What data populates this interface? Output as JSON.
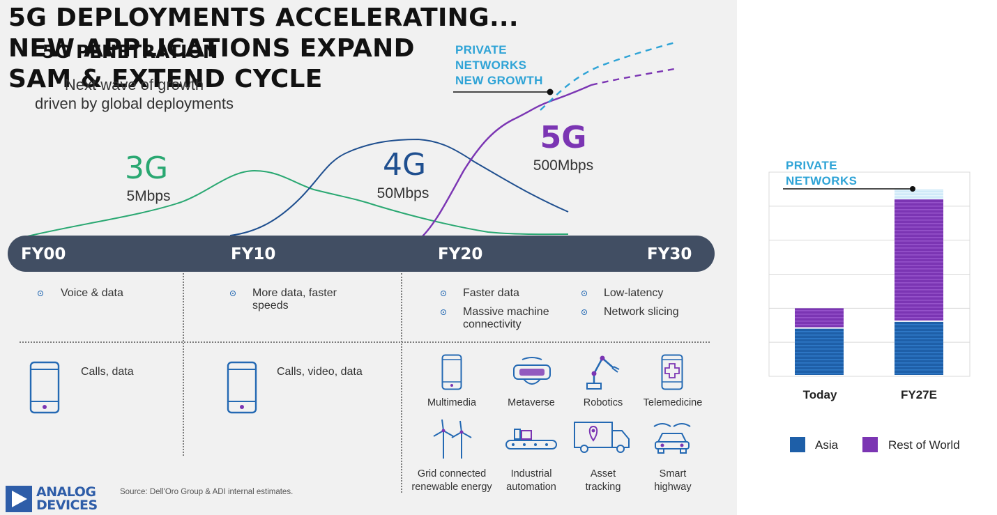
{
  "headline": {
    "line1": "5G DEPLOYMENTS ACCELERATING...",
    "line2": "NEW APPLICATIONS EXPAND",
    "line3": "SAM & EXTEND CYCLE"
  },
  "callout_private": {
    "line1": "PRIVATE",
    "line2": "NETWORKS",
    "line3": "NEW GROWTH"
  },
  "generations": [
    {
      "name": "3G",
      "speed": "5Mbps",
      "color": "#2aa872"
    },
    {
      "name": "4G",
      "speed": "50Mbps",
      "color": "#1f4f8f"
    },
    {
      "name": "5G",
      "speed": "500Mbps",
      "color": "#7b35b3"
    }
  ],
  "timeline": {
    "labels": [
      "FY00",
      "FY10",
      "FY20",
      "FY30"
    ],
    "color": "#414e63"
  },
  "features": {
    "fy00": [
      "Voice & data"
    ],
    "fy10": [
      "More data, faster",
      "speeds"
    ],
    "fy20_col1": [
      [
        "Faster data"
      ],
      [
        "Massive machine",
        "connectivity"
      ]
    ],
    "fy20_col2": [
      [
        "Low-latency"
      ],
      [
        "Network slicing"
      ]
    ]
  },
  "apps": {
    "fy00": "Calls, data",
    "fy10": "Calls, video, data",
    "fy20_row1": [
      {
        "icon": "smartphone-icon",
        "label": [
          "Multimedia"
        ]
      },
      {
        "icon": "vr-headset-icon",
        "label": [
          "Metaverse"
        ]
      },
      {
        "icon": "robot-arm-icon",
        "label": [
          "Robotics"
        ]
      },
      {
        "icon": "telemedicine-icon",
        "label": [
          "Telemedicine"
        ]
      }
    ],
    "fy20_row2": [
      {
        "icon": "wind-turbine-icon",
        "label": [
          "Grid connected",
          "renewable energy"
        ]
      },
      {
        "icon": "conveyor-icon",
        "label": [
          "Industrial",
          "automation"
        ]
      },
      {
        "icon": "delivery-truck-icon",
        "label": [
          "Asset",
          "tracking"
        ]
      },
      {
        "icon": "smart-car-icon",
        "label": [
          "Smart",
          "highway"
        ]
      }
    ]
  },
  "source": "Source: Dell'Oro Group & ADI internal estimates.",
  "logo": {
    "line1": "ANALOG",
    "line2": "DEVICES",
    "color": "#2e5da8"
  },
  "right_panel": {
    "title": "5G PENETRATION",
    "subtitle_line1": "Next wave of growth",
    "subtitle_line2": "driven by global deployments",
    "callout_line1": "PRIVATE",
    "callout_line2": "NETWORKS"
  },
  "chart_data": {
    "type": "bar",
    "stacked": true,
    "title": "5G PENETRATION",
    "categories": [
      "Today",
      "FY27E"
    ],
    "series": [
      {
        "name": "Asia",
        "values": [
          1.4,
          1.6
        ],
        "color": "#1e5fa8"
      },
      {
        "name": "Rest of World",
        "values": [
          0.6,
          3.6
        ],
        "color": "#7b35b3"
      },
      {
        "name": "",
        "values": [
          0,
          0.3
        ],
        "color": "#bfe3f5"
      }
    ],
    "ylim": [
      0,
      6
    ],
    "grid": true,
    "legend": "bottom"
  }
}
